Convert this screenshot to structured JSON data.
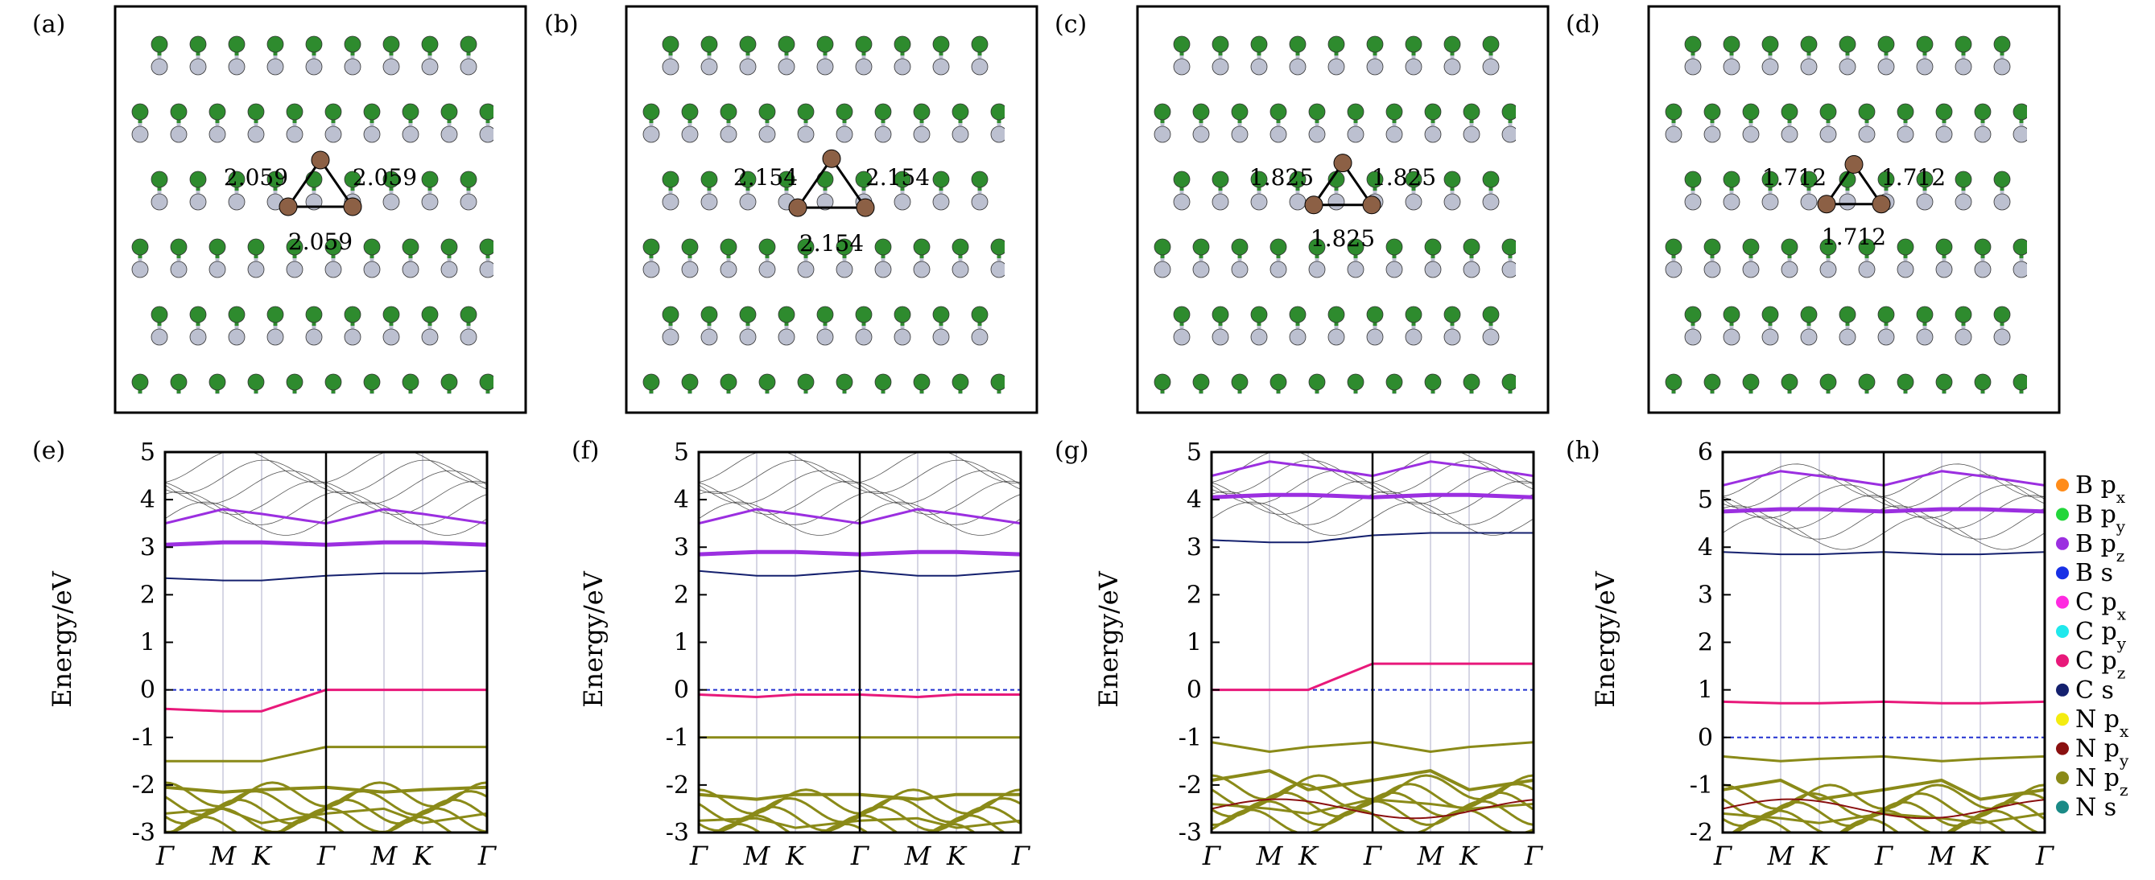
{
  "figure": {
    "structure_panels": [
      {
        "label": "(a)",
        "bonds": [
          "2.059",
          "2.059",
          "2.059"
        ]
      },
      {
        "label": "(b)",
        "bonds": [
          "2.154",
          "2.154",
          "2.154"
        ]
      },
      {
        "label": "(c)",
        "bonds": [
          "1.825",
          "1.825",
          "1.825"
        ]
      },
      {
        "label": "(d)",
        "bonds": [
          "1.712",
          "1.712",
          "1.712"
        ]
      }
    ],
    "atom_colors": {
      "B": "#bcc0d0",
      "N": "#2e8b2e",
      "C": "#8c6045"
    },
    "band_panels": [
      {
        "label": "(e)",
        "ylabel": "Energy/eV",
        "ylim": [
          -3,
          5
        ],
        "ticks": [
          "5",
          "4",
          "3",
          "2",
          "1",
          "0",
          "-1",
          "-2",
          "-3"
        ]
      },
      {
        "label": "(f)",
        "ylabel": "Energy/eV",
        "ylim": [
          -3,
          5
        ],
        "ticks": [
          "5",
          "4",
          "3",
          "2",
          "1",
          "0",
          "-1",
          "-2",
          "-3"
        ]
      },
      {
        "label": "(g)",
        "ylabel": "Energy/eV",
        "ylim": [
          -3,
          5
        ],
        "ticks": [
          "5",
          "4",
          "3",
          "2",
          "1",
          "0",
          "-1",
          "-2",
          "-3"
        ]
      },
      {
        "label": "(h)",
        "ylabel": "Energy/eV",
        "ylim": [
          -2,
          6
        ],
        "ticks": [
          "6",
          "5",
          "4",
          "3",
          "2",
          "1",
          "0",
          "-1",
          "-2"
        ]
      }
    ],
    "kpath": [
      "Γ",
      "M",
      "K",
      "Γ",
      "M",
      "K",
      "Γ"
    ],
    "legend": [
      {
        "atom": "B",
        "orb": "p",
        "sub": "x",
        "color": "#ff8c1a"
      },
      {
        "atom": "B",
        "orb": "p",
        "sub": "y",
        "color": "#22d63a"
      },
      {
        "atom": "B",
        "orb": "p",
        "sub": "z",
        "color": "#9b2fe0"
      },
      {
        "atom": "B",
        "orb": "s",
        "sub": "",
        "color": "#1830e6"
      },
      {
        "atom": "C",
        "orb": "p",
        "sub": "x",
        "color": "#ff2ae0"
      },
      {
        "atom": "C",
        "orb": "p",
        "sub": "y",
        "color": "#20e8ec"
      },
      {
        "atom": "C",
        "orb": "p",
        "sub": "z",
        "color": "#e8187a"
      },
      {
        "atom": "C",
        "orb": "s",
        "sub": "",
        "color": "#14206e"
      },
      {
        "atom": "N",
        "orb": "p",
        "sub": "x",
        "color": "#f4ec10"
      },
      {
        "atom": "N",
        "orb": "p",
        "sub": "y",
        "color": "#8a1010"
      },
      {
        "atom": "N",
        "orb": "p",
        "sub": "z",
        "color": "#8a8a18"
      },
      {
        "atom": "N",
        "orb": "s",
        "sub": "",
        "color": "#1a8a86"
      }
    ],
    "band_colors": {
      "bpz": "#9b2fe0",
      "npz": "#8a8a18",
      "cpz": "#e8187a",
      "cs": "#14206e",
      "ny": "#8a1010",
      "thin": "#555555"
    },
    "chart_data": [
      {
        "type": "line",
        "panel": "(e)",
        "ylabel": "Energy/eV",
        "ylim": [
          -3,
          5
        ],
        "x": [
          "Γ",
          "M",
          "K",
          "Γ",
          "M",
          "K",
          "Γ"
        ],
        "series": [
          {
            "values": [
              3.05,
              3.1,
              3.1,
              3.05,
              3.1,
              3.1,
              3.05
            ]
          },
          {
            "values": [
              3.5,
              3.8,
              3.7,
              3.5,
              3.8,
              3.7,
              3.5
            ]
          },
          {
            "values": [
              2.35,
              2.3,
              2.3,
              2.4,
              2.45,
              2.45,
              2.5
            ]
          },
          {
            "values": [
              -0.4,
              -0.45,
              -0.45,
              0.0,
              0.0,
              0.0,
              0.0
            ]
          },
          {
            "values": [
              -1.5,
              -1.5,
              -1.5,
              -1.2,
              -1.2,
              -1.2,
              -1.2
            ]
          },
          {
            "values": [
              -2.05,
              -2.15,
              -2.1,
              -2.05,
              -2.15,
              -2.1,
              -2.05
            ]
          },
          {
            "values": [
              -2.6,
              -2.5,
              -2.8,
              -2.6,
              -2.5,
              -2.8,
              -2.6
            ]
          }
        ]
      },
      {
        "type": "line",
        "panel": "(f)",
        "ylabel": "Energy/eV",
        "ylim": [
          -3,
          5
        ],
        "x": [
          "Γ",
          "M",
          "K",
          "Γ",
          "M",
          "K",
          "Γ"
        ],
        "series": [
          {
            "values": [
              2.85,
              2.9,
              2.9,
              2.85,
              2.9,
              2.9,
              2.85
            ]
          },
          {
            "values": [
              3.5,
              3.8,
              3.7,
              3.5,
              3.8,
              3.7,
              3.5
            ]
          },
          {
            "values": [
              2.5,
              2.4,
              2.4,
              2.5,
              2.4,
              2.4,
              2.5
            ]
          },
          {
            "values": [
              -0.1,
              -0.15,
              -0.1,
              -0.1,
              -0.15,
              -0.1,
              -0.1
            ]
          },
          {
            "values": [
              -1.0,
              -1.0,
              -1.0,
              -1.0,
              -1.0,
              -1.0,
              -1.0
            ]
          },
          {
            "values": [
              -2.2,
              -2.3,
              -2.2,
              -2.2,
              -2.3,
              -2.2,
              -2.2
            ]
          },
          {
            "values": [
              -2.75,
              -2.7,
              -2.9,
              -2.75,
              -2.7,
              -2.9,
              -2.75
            ]
          }
        ]
      },
      {
        "type": "line",
        "panel": "(g)",
        "ylabel": "Energy/eV",
        "ylim": [
          -3,
          5
        ],
        "x": [
          "Γ",
          "M",
          "K",
          "Γ",
          "M",
          "K",
          "Γ"
        ],
        "series": [
          {
            "values": [
              4.05,
              4.1,
              4.1,
              4.05,
              4.1,
              4.1,
              4.05
            ]
          },
          {
            "values": [
              4.5,
              4.8,
              4.7,
              4.5,
              4.8,
              4.7,
              4.5
            ]
          },
          {
            "values": [
              3.15,
              3.1,
              3.1,
              3.25,
              3.3,
              3.3,
              3.3
            ]
          },
          {
            "values": [
              0.0,
              0.0,
              0.0,
              0.55,
              0.55,
              0.55,
              0.55
            ]
          },
          {
            "values": [
              -1.1,
              -1.3,
              -1.2,
              -1.1,
              -1.3,
              -1.2,
              -1.1
            ]
          },
          {
            "values": [
              -1.9,
              -1.7,
              -2.1,
              -1.9,
              -1.7,
              -2.1,
              -1.9
            ]
          },
          {
            "values": [
              -2.4,
              -2.5,
              -2.6,
              -2.3,
              -2.4,
              -2.5,
              -2.4
            ]
          }
        ]
      },
      {
        "type": "line",
        "panel": "(h)",
        "ylabel": "Energy/eV",
        "ylim": [
          -2,
          6
        ],
        "x": [
          "Γ",
          "M",
          "K",
          "Γ",
          "M",
          "K",
          "Γ"
        ],
        "series": [
          {
            "values": [
              4.75,
              4.8,
              4.8,
              4.75,
              4.8,
              4.8,
              4.75
            ]
          },
          {
            "values": [
              5.3,
              5.6,
              5.5,
              5.3,
              5.6,
              5.5,
              5.3
            ]
          },
          {
            "values": [
              3.9,
              3.85,
              3.85,
              3.9,
              3.85,
              3.85,
              3.9
            ]
          },
          {
            "values": [
              0.75,
              0.72,
              0.72,
              0.75,
              0.72,
              0.72,
              0.75
            ]
          },
          {
            "values": [
              -0.4,
              -0.5,
              -0.45,
              -0.4,
              -0.5,
              -0.45,
              -0.4
            ]
          },
          {
            "values": [
              -1.1,
              -0.9,
              -1.3,
              -1.1,
              -0.9,
              -1.3,
              -1.1
            ]
          },
          {
            "values": [
              -1.6,
              -1.7,
              -1.8,
              -1.6,
              -1.7,
              -1.8,
              -1.6
            ]
          }
        ]
      }
    ]
  }
}
